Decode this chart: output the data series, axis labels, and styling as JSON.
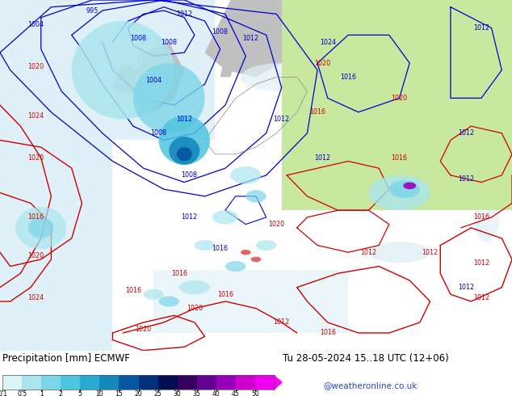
{
  "title_left": "Precipitation [mm] ECMWF",
  "title_right": "Tu 28-05-2024 15..18 UTC (12+06)",
  "credit": "@weatheronline.co.uk",
  "colorbar_values": [
    "0.1",
    "0.5",
    "1",
    "2",
    "5",
    "10",
    "15",
    "20",
    "25",
    "30",
    "35",
    "40",
    "45",
    "50"
  ],
  "colorbar_colors": [
    "#daf5f5",
    "#aae5ee",
    "#7dd5e8",
    "#4ec5e0",
    "#28aad2",
    "#1488bb",
    "#0558a0",
    "#02307a",
    "#010e50",
    "#350060",
    "#660090",
    "#9900bb",
    "#cc00cc",
    "#ee00ee"
  ],
  "colorbar_arrow_color": "#ff00ff",
  "map_land_color": "#c8e8a0",
  "map_sea_color": "#dff0f8",
  "map_gray_color": "#c0c0c0",
  "precip_colors": {
    "light1": "#daf5f5",
    "light2": "#aae5ee",
    "medium1": "#7dd5e8",
    "medium2": "#4ec5e0",
    "dark1": "#1488bb",
    "dark2": "#0558a0",
    "darkest": "#02307a"
  },
  "isobar_blue_color": "#0000cc",
  "isobar_red_color": "#cc0000",
  "bottom_bg": "#ffffff",
  "text_color": "#000000",
  "credit_color": "#2244cc",
  "label_fontsize": 8.5,
  "small_fontsize": 6.0,
  "credit_fontsize": 7.5
}
